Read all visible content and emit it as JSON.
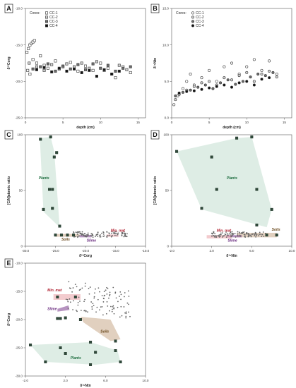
{
  "chart_data": [
    {
      "type": "scatter",
      "panel": "A",
      "xlabel": "depth (cm)",
      "ylabel": "δ¹³Corg",
      "xlim": [
        0,
        16
      ],
      "ylim": [
        -25,
        -10
      ],
      "xticks": [
        "0",
        "5",
        "10",
        "15"
      ],
      "yticks": [
        "-25.0",
        "-20.0",
        "-15.0",
        "-10.0"
      ],
      "legend_title": "Cores:",
      "legend_placement": "top-left",
      "series": [
        {
          "name": "CC-1",
          "marker": "open-square",
          "points": [
            [
              0.2,
              -16
            ],
            [
              0.4,
              -15.5
            ],
            [
              0.6,
              -15
            ],
            [
              0.8,
              -14.8
            ],
            [
              1,
              -14.6
            ],
            [
              1.2,
              -14.4
            ],
            [
              0.3,
              -18.5
            ],
            [
              0.6,
              -19
            ],
            [
              1,
              -17
            ],
            [
              1.5,
              -17.5
            ],
            [
              2,
              -16.5
            ],
            [
              2.5,
              -17.8
            ],
            [
              3,
              -18.2
            ],
            [
              4,
              -17.2
            ],
            [
              5,
              -18
            ],
            [
              6,
              -17.4
            ],
            [
              7,
              -18.6
            ],
            [
              8,
              -17.9
            ],
            [
              9,
              -18.5
            ],
            [
              10,
              -17.5
            ],
            [
              11,
              -18.2
            ],
            [
              12,
              -19.5
            ],
            [
              13,
              -18
            ],
            [
              14,
              -18.8
            ]
          ]
        },
        {
          "name": "CC-2",
          "marker": "light-grey-square",
          "points": [
            [
              0.5,
              -17.5
            ],
            [
              1.5,
              -18
            ],
            [
              2.5,
              -18.5
            ],
            [
              3.5,
              -17.7
            ],
            [
              4.5,
              -18.3
            ],
            [
              5.5,
              -17.6
            ],
            [
              6.5,
              -18
            ],
            [
              7.5,
              -17.5
            ],
            [
              8.5,
              -18.2
            ],
            [
              9.5,
              -17.3
            ],
            [
              10.5,
              -18.5
            ],
            [
              11.5,
              -19
            ],
            [
              12.5,
              -17.8
            ],
            [
              13.5,
              -18.4
            ]
          ]
        },
        {
          "name": "CC-3",
          "marker": "dark-grey-square",
          "points": [
            [
              1,
              -18.3
            ],
            [
              2,
              -18
            ],
            [
              3,
              -17.6
            ],
            [
              4,
              -18.6
            ],
            [
              5,
              -17.9
            ],
            [
              6,
              -18.3
            ],
            [
              7,
              -17.7
            ],
            [
              8,
              -18.4
            ],
            [
              9,
              -17.6
            ],
            [
              10,
              -18.2
            ],
            [
              11,
              -17.8
            ],
            [
              12,
              -18.6
            ],
            [
              13,
              -18.2
            ],
            [
              14,
              -18
            ]
          ]
        },
        {
          "name": "CC-4",
          "marker": "black-square",
          "points": [
            [
              1.5,
              -18.4
            ],
            [
              2.5,
              -18.1
            ],
            [
              3.5,
              -18.7
            ],
            [
              4.5,
              -18.2
            ],
            [
              5.5,
              -18.6
            ],
            [
              6.5,
              -18.3
            ],
            [
              7.5,
              -18.8
            ],
            [
              8.5,
              -18.5
            ],
            [
              9.5,
              -19.3
            ],
            [
              10.5,
              -18.4
            ],
            [
              11.5,
              -19
            ],
            [
              12.5,
              -18.6
            ]
          ]
        }
      ]
    },
    {
      "type": "scatter",
      "panel": "B",
      "xlabel": "depth (cm)",
      "ylabel": "δ¹⁵Ntn",
      "xlim": [
        0,
        16
      ],
      "ylim": [
        0,
        15
      ],
      "xticks": [
        "0",
        "5",
        "10",
        "15"
      ],
      "yticks": [
        "0.0",
        "5.0",
        "10.0",
        "15.0"
      ],
      "legend_title": "Cores:",
      "legend_placement": "top-left",
      "series": [
        {
          "name": "CC-1",
          "marker": "open-circle",
          "points": [
            [
              0.3,
              1.8
            ],
            [
              0.8,
              3
            ],
            [
              1.5,
              4
            ],
            [
              2,
              5
            ],
            [
              2.5,
              6
            ],
            [
              3,
              4.5
            ],
            [
              4,
              5.5
            ],
            [
              5,
              6.5
            ],
            [
              6,
              5
            ],
            [
              7,
              7
            ],
            [
              8,
              7.5
            ],
            [
              9,
              6
            ],
            [
              10,
              7
            ],
            [
              11,
              8
            ],
            [
              12,
              6.5
            ],
            [
              13,
              7.8
            ],
            [
              14,
              6
            ]
          ]
        },
        {
          "name": "CC-2",
          "marker": "light-grey-circle",
          "points": [
            [
              0.5,
              2.5
            ],
            [
              1,
              3.2
            ],
            [
              2,
              3.8
            ],
            [
              3,
              4.3
            ],
            [
              4,
              4.8
            ],
            [
              5,
              5
            ],
            [
              6,
              4.5
            ],
            [
              7,
              5.5
            ],
            [
              8,
              5.2
            ],
            [
              9,
              5.8
            ],
            [
              10,
              6.2
            ],
            [
              11,
              5
            ],
            [
              12,
              6
            ],
            [
              13,
              6.4
            ],
            [
              14,
              5.6
            ]
          ]
        },
        {
          "name": "CC-3",
          "marker": "dark-grey-circle",
          "points": [
            [
              0.5,
              3
            ],
            [
              1.5,
              3.5
            ],
            [
              2.5,
              3.8
            ],
            [
              3.5,
              4.2
            ],
            [
              4.5,
              4.5
            ],
            [
              5.5,
              4
            ],
            [
              6.5,
              4.8
            ],
            [
              7.5,
              5.2
            ],
            [
              8.5,
              4.6
            ],
            [
              9.5,
              5
            ],
            [
              10.5,
              5.6
            ],
            [
              11.5,
              6
            ],
            [
              12.5,
              5.8
            ],
            [
              13.5,
              6.2
            ]
          ]
        },
        {
          "name": "CC-4",
          "marker": "black-circle",
          "points": [
            [
              1,
              3.4
            ],
            [
              2,
              3.6
            ],
            [
              3,
              3.7
            ],
            [
              4,
              3.9
            ],
            [
              5,
              4.1
            ],
            [
              6,
              4.3
            ],
            [
              7,
              4.5
            ],
            [
              8,
              4.2
            ],
            [
              9,
              4.8
            ],
            [
              10,
              5
            ],
            [
              11,
              4.5
            ],
            [
              12,
              5.3
            ],
            [
              13,
              5.5
            ]
          ]
        }
      ]
    },
    {
      "type": "scatter",
      "panel": "C",
      "xlabel": "δ¹³Corg",
      "ylabel": "[C/N]atomic ratio",
      "xlim": [
        -30,
        -10
      ],
      "ylim": [
        0,
        100
      ],
      "xticks": [
        "-30.0",
        "-25.0",
        "-20.0",
        "-15.0",
        "-10.0"
      ],
      "yticks": [
        "0",
        "50",
        "100"
      ],
      "regions": [
        {
          "label": "Plants",
          "color": "#c3dfd0",
          "label_color": "#1a6b3c",
          "points": [
            [
              -27.6,
              97
            ],
            [
              -25.8,
              98
            ],
            [
              -25.2,
              85
            ],
            [
              -24.3,
              17
            ],
            [
              -27,
              31
            ]
          ]
        },
        {
          "label": "Soils",
          "color": "#c8a98a",
          "label_color": "#6b4a1e",
          "points": [
            [
              -25,
              8.5
            ],
            [
              -21,
              8.5
            ],
            [
              -21,
              11
            ],
            [
              -25,
              11
            ]
          ]
        },
        {
          "label": "Slime",
          "color": "#7a3a8c",
          "label_color": "#6b2d80",
          "points": [
            [
              -21,
              8
            ],
            [
              -19,
              8
            ],
            [
              -19,
              10
            ],
            [
              -21,
              10
            ]
          ]
        },
        {
          "label": "Min. mat",
          "color": "#e9a0a6",
          "label_color": "#b01e2e",
          "points": [
            [
              -16.5,
              8.5
            ],
            [
              -14.5,
              8.5
            ],
            [
              -14.5,
              10.5
            ],
            [
              -16.5,
              10.5
            ]
          ]
        }
      ],
      "squares": [
        [
          -27.5,
          96
        ],
        [
          -25.8,
          98
        ],
        [
          -25.2,
          80
        ],
        [
          -24.8,
          84
        ],
        [
          -26,
          51
        ],
        [
          -25.5,
          51
        ],
        [
          -27,
          33
        ],
        [
          -25.5,
          34
        ],
        [
          -24.3,
          18
        ],
        [
          -25,
          10
        ],
        [
          -24,
          10
        ],
        [
          -23,
          10
        ],
        [
          -22,
          10
        ]
      ],
      "region_labels_pos": {
        "Plants": [
          -27.8,
          60
        ],
        "Soils": [
          -24,
          5
        ],
        "Slime": [
          -19.8,
          4
        ],
        "Min. mat": [
          -15.8,
          13
        ]
      }
    },
    {
      "type": "scatter",
      "panel": "D",
      "xlabel": "δ¹⁵Ntn",
      "ylabel": "[C/N]atomic ratio",
      "xlim": [
        -2,
        10
      ],
      "ylim": [
        0,
        100
      ],
      "xticks": [
        "-2.0",
        "2.0",
        "6.0",
        "10.0"
      ],
      "yticks": [
        "0",
        "50",
        "100"
      ],
      "regions": [
        {
          "label": "Plants",
          "color": "#c3dfd0",
          "label_color": "#1a6b3c",
          "points": [
            [
              -1.5,
              85
            ],
            [
              4.5,
              97
            ],
            [
              6,
              98
            ],
            [
              8,
              33
            ],
            [
              7.5,
              17
            ],
            [
              1,
              33
            ]
          ]
        },
        {
          "label": "Soils",
          "color": "#c8a98a",
          "label_color": "#6b4a1e",
          "points": [
            [
              4.5,
              8
            ],
            [
              8.5,
              8
            ],
            [
              8.5,
              12
            ],
            [
              4.5,
              12
            ]
          ]
        },
        {
          "label": "Slime",
          "color": "#7a3a8c",
          "label_color": "#6b2d80",
          "points": [
            [
              3.5,
              8
            ],
            [
              5,
              8
            ],
            [
              5,
              10
            ],
            [
              3.5,
              10
            ]
          ]
        },
        {
          "label": "Min. mat",
          "color": "#e9a0a6",
          "label_color": "#b01e2e",
          "points": [
            [
              1.5,
              7
            ],
            [
              4,
              7
            ],
            [
              4,
              10
            ],
            [
              1.5,
              10
            ]
          ]
        }
      ],
      "squares": [
        [
          -1.5,
          85
        ],
        [
          2,
          80
        ],
        [
          4.5,
          97
        ],
        [
          6,
          98
        ],
        [
          2.5,
          51
        ],
        [
          6.5,
          51
        ],
        [
          1,
          34
        ],
        [
          8,
          33
        ],
        [
          6.5,
          19
        ],
        [
          8.5,
          10
        ],
        [
          7.5,
          10
        ]
      ],
      "region_labels_pos": {
        "Plants": [
          3.5,
          60
        ],
        "Soils": [
          8,
          14
        ],
        "Slime": [
          3.6,
          4
        ],
        "Min. mat": [
          2.5,
          13
        ]
      }
    },
    {
      "type": "scatter",
      "panel": "E",
      "xlabel": "δ¹⁵Ntn",
      "ylabel": "δ¹³Corg",
      "xlim": [
        -2,
        10
      ],
      "ylim": [
        -30,
        -10
      ],
      "xticks": [
        "-2.0",
        "2.0",
        "6.0",
        "10.0"
      ],
      "yticks": [
        "-30.0",
        "-25.0",
        "-20.0",
        "-15.0",
        "-10.0"
      ],
      "regions": [
        {
          "label": "Plants",
          "color": "#c3dfd0",
          "label_color": "#1a6b3c",
          "points": [
            [
              -1.5,
              -24.5
            ],
            [
              4.5,
              -24
            ],
            [
              7.2,
              -25.5
            ],
            [
              7.5,
              -27.5
            ],
            [
              5,
              -28
            ],
            [
              0,
              -27.5
            ]
          ]
        },
        {
          "label": "Soils",
          "color": "#c8a98a",
          "label_color": "#6b4a1e",
          "points": [
            [
              3.5,
              -19.5
            ],
            [
              6.5,
              -20
            ],
            [
              7.5,
              -23.5
            ],
            [
              6.5,
              -23.8
            ],
            [
              3.8,
              -20.5
            ]
          ]
        },
        {
          "label": "Slime",
          "color": "#7a3a8c",
          "label_color": "#6b2d80",
          "points": [
            [
              1.2,
              -18.1
            ],
            [
              2.3,
              -17.5
            ],
            [
              2.4,
              -18.3
            ],
            [
              1.2,
              -18.6
            ]
          ]
        },
        {
          "label": "Min. mat",
          "color": "#e9a0a6",
          "label_color": "#b01e2e",
          "points": [
            [
              0.8,
              -15.5
            ],
            [
              3.5,
              -15.5
            ],
            [
              3.5,
              -16.5
            ],
            [
              0.8,
              -16.5
            ]
          ]
        }
      ],
      "squares": [
        [
          -1.5,
          -24.5
        ],
        [
          1.5,
          -25
        ],
        [
          2,
          -26
        ],
        [
          4.5,
          -24
        ],
        [
          5,
          -25.8
        ],
        [
          7,
          -25.5
        ],
        [
          7.5,
          -27.5
        ],
        [
          4.5,
          -28
        ],
        [
          0,
          -27.5
        ],
        [
          7,
          -23.8
        ],
        [
          3.5,
          -20
        ],
        [
          1.2,
          -19.8
        ],
        [
          1.5,
          -19.8
        ],
        [
          2,
          -19.7
        ],
        [
          1.2,
          -16
        ],
        [
          3,
          -16
        ]
      ],
      "region_labels_pos": {
        "Plants": [
          2.5,
          -27
        ],
        "Soils": [
          5.5,
          -22.3
        ],
        "Slime": [
          0.2,
          -18.3
        ],
        "Min. mat": [
          0.2,
          -15
        ]
      }
    }
  ],
  "panel_letters": [
    "A",
    "B",
    "C",
    "D",
    "E"
  ],
  "legend": {
    "title": "Cores:",
    "items": [
      "CC-1",
      "CC-2",
      "CC-3",
      "CC-4"
    ]
  }
}
